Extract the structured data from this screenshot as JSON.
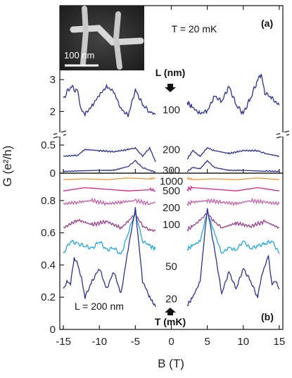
{
  "chart_data": {
    "type": "line",
    "xlabel": "B (T)",
    "ylabel": "G (e²/h)",
    "xlim": [
      -15.5,
      15.5
    ],
    "x_ticks": [
      "-15",
      "-10",
      "-5",
      "0",
      "5",
      "10",
      "15"
    ],
    "panels": [
      {
        "id": "a",
        "panel_label": "(a)",
        "temperature_label": "T = 20 mK",
        "ylim_upper": [
          1.5,
          3.4
        ],
        "y_ticks_upper": [
          "2",
          "3"
        ],
        "ylim_lower": [
          0,
          0.6
        ],
        "y_ticks_lower": [
          "0",
          "0.5"
        ],
        "parameter_label": "L (nm)",
        "inset": {
          "scale_label": "100 nm"
        },
        "series": [
          {
            "name": "100",
            "color": "#2b3196",
            "x": [
              -15,
              -14,
              -13,
              -12.5,
              -12,
              -11,
              -10,
              -9,
              -8,
              -7,
              -6,
              -5,
              -4,
              -3,
              -2.2,
              2.2,
              3,
              4,
              5,
              6,
              7,
              8,
              9,
              10,
              11,
              12,
              12.5,
              13,
              14,
              15
            ],
            "values": [
              2.4,
              2.8,
              2.6,
              2.05,
              1.9,
              2.2,
              2.5,
              2.8,
              2.6,
              2.1,
              1.85,
              2.7,
              2.2,
              2.0,
              1.9,
              2.3,
              2.1,
              1.95,
              2.0,
              2.5,
              2.3,
              2.8,
              2.2,
              1.95,
              2.4,
              3.0,
              3.15,
              2.6,
              2.4,
              2.2
            ]
          },
          {
            "name": "200",
            "color": "#2b3196",
            "x": [
              -15,
              -13,
              -12,
              -10,
              -8,
              -6,
              -5,
              -4,
              -3,
              -2.2,
              2.2,
              3,
              4,
              5,
              6,
              8,
              10,
              12,
              13,
              15
            ],
            "values": [
              0.3,
              0.32,
              0.42,
              0.4,
              0.38,
              0.42,
              0.45,
              0.3,
              0.45,
              0.2,
              0.25,
              0.4,
              0.3,
              0.45,
              0.4,
              0.35,
              0.4,
              0.4,
              0.35,
              0.3
            ]
          },
          {
            "name": "300",
            "color": "#2b3196",
            "x": [
              -15,
              -13,
              -10,
              -8,
              -6,
              -5,
              -4,
              -3,
              -2.2,
              2.2,
              3,
              4,
              5,
              6,
              8,
              10,
              13,
              15
            ],
            "values": [
              0.03,
              0.04,
              0.05,
              0.05,
              0.12,
              0.22,
              0.1,
              0.05,
              0.02,
              0.03,
              0.1,
              0.08,
              0.22,
              0.1,
              0.05,
              0.05,
              0.04,
              0.03
            ]
          }
        ]
      },
      {
        "id": "b",
        "panel_label": "(b)",
        "length_label": "L = 200 nm",
        "ylim": [
          0,
          0.97
        ],
        "y_ticks": [
          "0",
          "0.2",
          "0.4",
          "0.6",
          "0.8"
        ],
        "parameter_label": "T (mK)",
        "series": [
          {
            "name": "1000",
            "color": "#f39433",
            "x": [
              -15,
              -12,
              -9,
              -6,
              -3,
              -2.2,
              2.2,
              3,
              6,
              9,
              12,
              15
            ],
            "values": [
              0.93,
              0.935,
              0.93,
              0.94,
              0.935,
              0.94,
              0.94,
              0.93,
              0.935,
              0.93,
              0.94,
              0.93
            ]
          },
          {
            "name": "500",
            "color": "#e0218a",
            "x": [
              -15,
              -12,
              -9,
              -6,
              -3,
              -2.2,
              2.2,
              3,
              6,
              9,
              12,
              15
            ],
            "values": [
              0.86,
              0.88,
              0.87,
              0.86,
              0.87,
              0.86,
              0.87,
              0.88,
              0.87,
              0.86,
              0.88,
              0.86
            ]
          },
          {
            "name": "200",
            "color": "#c461ab",
            "x": [
              -15,
              -13,
              -11,
              -9,
              -7,
              -5,
              -3,
              -2.2,
              2.2,
              3,
              5,
              7,
              9,
              11,
              13,
              15
            ],
            "values": [
              0.78,
              0.79,
              0.8,
              0.78,
              0.79,
              0.8,
              0.78,
              0.79,
              0.78,
              0.79,
              0.8,
              0.79,
              0.78,
              0.8,
              0.79,
              0.78
            ]
          },
          {
            "name": "100",
            "color": "#9b3d8e",
            "x": [
              -15,
              -13,
              -11,
              -9,
              -7,
              -6,
              -5,
              -4,
              -3,
              -2.2,
              2.2,
              3,
              4,
              5,
              6,
              7,
              9,
              11,
              13,
              15
            ],
            "values": [
              0.63,
              0.68,
              0.65,
              0.67,
              0.63,
              0.67,
              0.72,
              0.64,
              0.62,
              0.61,
              0.62,
              0.64,
              0.68,
              0.72,
              0.67,
              0.63,
              0.66,
              0.64,
              0.67,
              0.63
            ]
          },
          {
            "name": "50",
            "color": "#1fa9e1",
            "x": [
              -15,
              -14,
              -13,
              -12,
              -11,
              -10,
              -9,
              -8,
              -7,
              -6,
              -5,
              -4,
              -3,
              -2.2,
              2.2,
              3,
              4,
              5,
              6,
              7,
              8,
              9,
              10,
              11,
              12,
              13,
              14,
              15
            ],
            "values": [
              0.47,
              0.55,
              0.53,
              0.52,
              0.5,
              0.55,
              0.49,
              0.51,
              0.46,
              0.6,
              0.73,
              0.55,
              0.52,
              0.5,
              0.5,
              0.52,
              0.55,
              0.73,
              0.6,
              0.47,
              0.51,
              0.49,
              0.55,
              0.5,
              0.52,
              0.53,
              0.55,
              0.47
            ]
          },
          {
            "name": "20",
            "color": "#2b3196",
            "x": [
              -15,
              -14.5,
              -14,
              -13.5,
              -13,
              -12.5,
              -12,
              -11,
              -10,
              -9,
              -8,
              -7,
              -6,
              -5,
              -4,
              -3,
              -2.2,
              2.2,
              3,
              4,
              5,
              6,
              7,
              8,
              9,
              10,
              11,
              12,
              12.5,
              13,
              13.5,
              14,
              14.5,
              15
            ],
            "values": [
              0.25,
              0.3,
              0.28,
              0.45,
              0.4,
              0.32,
              0.2,
              0.3,
              0.38,
              0.25,
              0.36,
              0.22,
              0.5,
              0.75,
              0.3,
              0.2,
              0.14,
              0.15,
              0.2,
              0.3,
              0.75,
              0.5,
              0.22,
              0.36,
              0.25,
              0.38,
              0.3,
              0.2,
              0.32,
              0.4,
              0.45,
              0.28,
              0.3,
              0.25
            ]
          }
        ]
      }
    ]
  }
}
